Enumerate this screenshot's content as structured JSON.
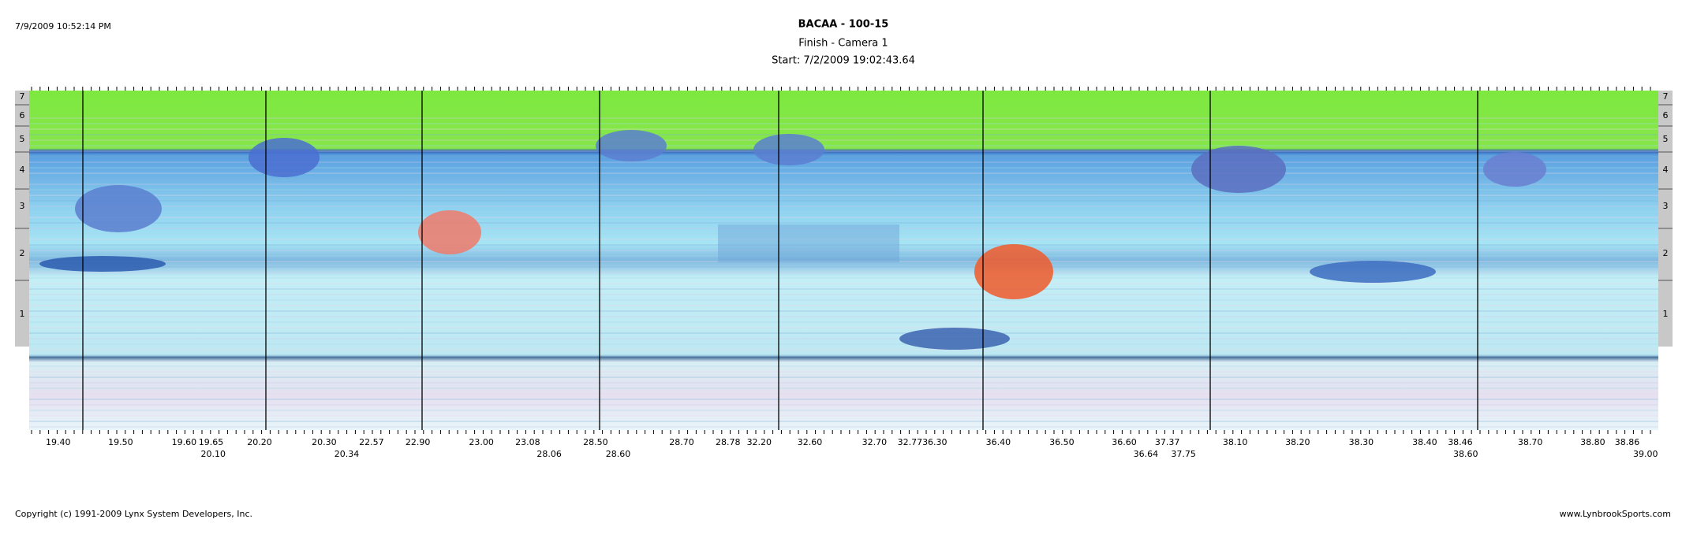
{
  "header": {
    "timestamp": "7/9/2009 10:52:14 PM",
    "title": "BACAA - 100-15",
    "subtitle": "Finish - Camera 1",
    "start": "Start: 7/2/2009 19:02:43.64"
  },
  "lanes": [
    "7",
    "6",
    "5",
    "4",
    "3",
    "2",
    "1"
  ],
  "times": {
    "row1": [
      "19.40",
      "19.50",
      "19.60",
      "19.65",
      "20.20",
      "20.30",
      "22.57",
      "22.90",
      "23.00",
      "23.08",
      "28.50",
      "28.70",
      "28.78",
      "32.20",
      "32.60",
      "32.70",
      "32.77",
      "36.30",
      "36.40",
      "36.50",
      "36.60",
      "37.37",
      "38.10",
      "38.20",
      "38.30",
      "38.40",
      "38.46",
      "38.70",
      "38.80",
      "38.86"
    ],
    "row2": [
      "20.10",
      "20.34",
      "28.06",
      "28.60",
      "36.64",
      "37.75",
      "38.60",
      "39.00"
    ]
  },
  "footer": {
    "copyright": "Copyright (c) 1991-2009 Lynx System Developers, Inc.",
    "site": "www.LynbrookSports.com"
  }
}
